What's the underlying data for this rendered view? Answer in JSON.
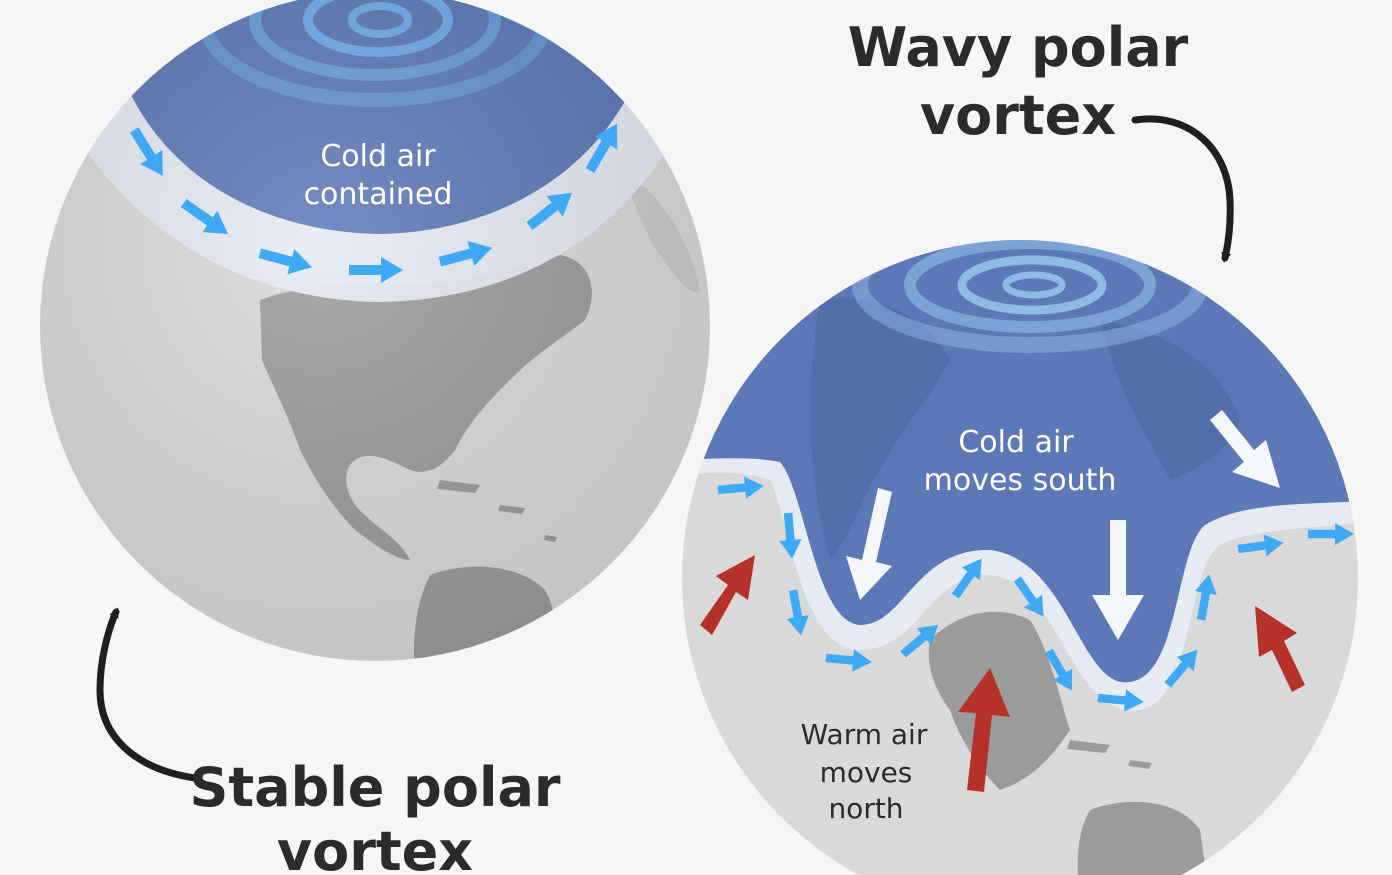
{
  "colors": {
    "background": "#f6f6f6",
    "globe": "#d9d9d9",
    "land": "#9b9b9b",
    "cold_air": "#5c78b6",
    "jet_arrow": "#3fa9f5",
    "warm_arrow": "#b5312b",
    "cold_arrow": "#f4f8fc"
  },
  "stable": {
    "title_line1": "Stable polar",
    "title_line2": "vortex",
    "label_line1": "Cold air",
    "label_line2": "contained"
  },
  "wavy": {
    "title_line1": "Wavy polar",
    "title_line2": "vortex",
    "cold_label_line1": "Cold air",
    "cold_label_line2": "moves south",
    "warm_label_line1": "Warm air",
    "warm_label_line2": "moves",
    "warm_label_line3": "north"
  }
}
